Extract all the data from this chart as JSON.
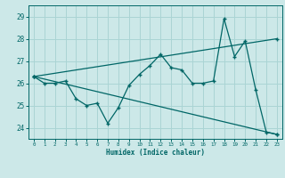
{
  "title": "",
  "xlabel": "Humidex (Indice chaleur)",
  "bg_color": "#cce8e8",
  "grid_color": "#aad4d4",
  "line_color": "#006666",
  "xlim": [
    -0.5,
    23.5
  ],
  "ylim": [
    23.5,
    29.5
  ],
  "yticks": [
    24,
    25,
    26,
    27,
    28,
    29
  ],
  "xticks": [
    0,
    1,
    2,
    3,
    4,
    5,
    6,
    7,
    8,
    9,
    10,
    11,
    12,
    13,
    14,
    15,
    16,
    17,
    18,
    19,
    20,
    21,
    22,
    23
  ],
  "series1_x": [
    0,
    23
  ],
  "series1_y": [
    26.3,
    23.7
  ],
  "series2_x": [
    0,
    23
  ],
  "series2_y": [
    26.3,
    28.0
  ],
  "series3_x": [
    0,
    1,
    2,
    3,
    4,
    5,
    6,
    7,
    8,
    9,
    10,
    11,
    12,
    13,
    14,
    15,
    16,
    17,
    18,
    19,
    20,
    21,
    22,
    23
  ],
  "series3_y": [
    26.3,
    26.0,
    26.0,
    26.1,
    25.3,
    25.0,
    25.1,
    24.2,
    24.9,
    25.9,
    26.4,
    26.8,
    27.3,
    26.7,
    26.6,
    26.0,
    26.0,
    26.1,
    28.9,
    27.2,
    27.9,
    25.7,
    23.8,
    23.7
  ]
}
